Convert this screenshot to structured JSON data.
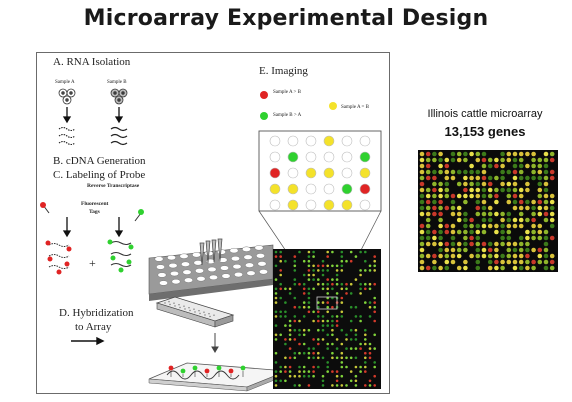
{
  "title": "Microarray Experimental Design",
  "sections": {
    "a": "A. RNA Isolation",
    "b": "B. cDNA Generation",
    "c": "C. Labeling of Probe",
    "d_line1": "D. Hybridization",
    "d_line2": "to Array",
    "e": "E. Imaging"
  },
  "labels": {
    "sample_a": "Sample A",
    "sample_b": "Sample B",
    "reverse_transcriptase": "Reverse Transcriptase",
    "fluorescent": "Fluorescent",
    "tags": "Tags",
    "plus": "+"
  },
  "legend": [
    {
      "text": "Sample A > B",
      "color": "#e02424"
    },
    {
      "text": "Sample B > A",
      "color": "#2fd12f"
    },
    {
      "text": "Sample A = B",
      "color": "#f4e22a"
    }
  ],
  "right": {
    "caption": "Illinois cattle microarray",
    "genes": "13,153 genes"
  },
  "colors": {
    "red": "#e02424",
    "green": "#2fd12f",
    "yellow": "#f4e22a",
    "array_bg": "#0c0c0c"
  }
}
